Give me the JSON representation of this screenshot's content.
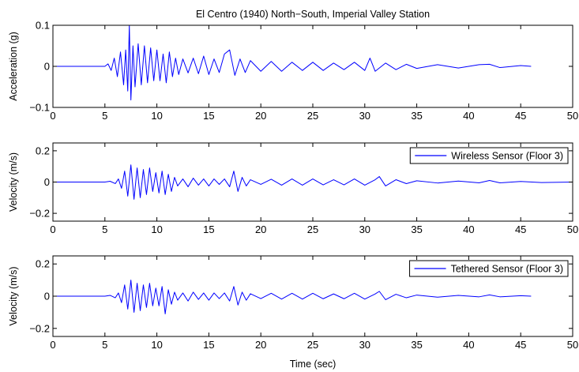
{
  "figure": {
    "title": "El Centro (1940) North−South, Imperial Valley Station",
    "xlabel": "Time (sec)"
  },
  "chart_data": [
    {
      "type": "line",
      "ylabel": "Acceleration (g)",
      "xlim": [
        0,
        50
      ],
      "ylim": [
        -0.1,
        0.1
      ],
      "xticks": [
        0,
        5,
        10,
        15,
        20,
        25,
        30,
        35,
        40,
        45,
        50
      ],
      "yticks": [
        -0.1,
        0,
        0.1
      ],
      "ytick_labels": [
        "−0.1",
        "0",
        "0.1"
      ],
      "legend": null,
      "series": [
        {
          "color": "#0000ff",
          "x": [
            0,
            5.0,
            5.3,
            5.6,
            5.9,
            6.2,
            6.5,
            6.8,
            7.0,
            7.2,
            7.35,
            7.5,
            7.7,
            7.9,
            8.2,
            8.5,
            8.8,
            9.1,
            9.4,
            9.7,
            10.0,
            10.3,
            10.6,
            10.9,
            11.2,
            11.5,
            11.8,
            12.1,
            12.5,
            13.0,
            13.5,
            14.0,
            14.5,
            15.0,
            15.5,
            16.0,
            16.5,
            17.0,
            17.5,
            18.0,
            18.5,
            19.0,
            20.0,
            21.0,
            22.0,
            23.0,
            24.0,
            25.0,
            26.0,
            27.0,
            28.0,
            29.0,
            30.0,
            30.5,
            31.0,
            32.0,
            33.0,
            34.0,
            35.0,
            37.0,
            39.0,
            41.0,
            42.0,
            43.0,
            45.0,
            46.0
          ],
          "y": [
            0,
            0,
            0.006,
            -0.01,
            0.02,
            -0.025,
            0.035,
            -0.045,
            0.04,
            -0.06,
            0.1,
            -0.082,
            0.05,
            -0.05,
            0.055,
            -0.045,
            0.05,
            -0.04,
            0.045,
            -0.035,
            0.04,
            -0.035,
            0.03,
            -0.04,
            0.035,
            -0.025,
            0.02,
            -0.02,
            0.018,
            -0.016,
            0.02,
            -0.018,
            0.025,
            -0.02,
            0.018,
            -0.015,
            0.03,
            0.04,
            -0.022,
            0.018,
            -0.015,
            0.014,
            -0.012,
            0.012,
            -0.012,
            0.01,
            -0.01,
            0.01,
            -0.01,
            0.008,
            -0.008,
            0.01,
            -0.01,
            0.02,
            -0.012,
            0.008,
            -0.008,
            0.005,
            -0.005,
            0.004,
            -0.004,
            0.004,
            0.005,
            -0.003,
            0.002,
            0
          ]
        }
      ]
    },
    {
      "type": "line",
      "ylabel": "Velocity (m/s)",
      "xlim": [
        0,
        50
      ],
      "ylim": [
        -0.25,
        0.25
      ],
      "xticks": [
        0,
        5,
        10,
        15,
        20,
        25,
        30,
        35,
        40,
        45,
        50
      ],
      "yticks": [
        -0.2,
        0,
        0.2
      ],
      "ytick_labels": [
        "−0.2",
        "0",
        "0.2"
      ],
      "legend": {
        "location": "top-right",
        "entries": [
          "Wireless Sensor (Floor 3)"
        ]
      },
      "series": [
        {
          "name": "Wireless Sensor (Floor 3)",
          "color": "#0000ff",
          "x": [
            0,
            5.0,
            5.5,
            6.0,
            6.3,
            6.6,
            6.9,
            7.2,
            7.5,
            7.8,
            8.1,
            8.4,
            8.7,
            9.0,
            9.3,
            9.6,
            9.9,
            10.2,
            10.5,
            10.8,
            11.1,
            11.4,
            11.7,
            12.0,
            12.5,
            13.0,
            13.5,
            14.0,
            14.5,
            15.0,
            15.5,
            16.0,
            16.5,
            17.0,
            17.4,
            17.8,
            18.2,
            18.6,
            19.0,
            20.0,
            21.0,
            22.0,
            23.0,
            24.0,
            25.0,
            26.0,
            27.0,
            28.0,
            29.0,
            30.0,
            31.0,
            31.4,
            32.0,
            33.0,
            34.0,
            35.0,
            37.0,
            39.0,
            41.0,
            42.0,
            43.0,
            45.0,
            47.0,
            50.0
          ],
          "y": [
            0,
            0,
            0.005,
            -0.01,
            0.02,
            -0.04,
            0.07,
            -0.09,
            0.11,
            -0.11,
            0.09,
            -0.1,
            0.08,
            -0.08,
            0.09,
            -0.06,
            0.06,
            -0.07,
            0.07,
            -0.08,
            0.05,
            -0.06,
            0.03,
            -0.025,
            0.02,
            -0.03,
            0.025,
            -0.02,
            0.02,
            -0.025,
            0.02,
            -0.015,
            0.02,
            -0.03,
            0.07,
            -0.06,
            0.03,
            -0.025,
            0.015,
            -0.015,
            0.018,
            -0.02,
            0.02,
            -0.02,
            0.02,
            -0.018,
            0.015,
            -0.018,
            0.02,
            -0.02,
            0.015,
            0.035,
            -0.025,
            0.015,
            -0.01,
            0.008,
            -0.006,
            0.006,
            -0.005,
            0.01,
            -0.005,
            0.004,
            -0.003,
            0
          ]
        }
      ]
    },
    {
      "type": "line",
      "ylabel": "Velocity (m/s)",
      "xlim": [
        0,
        50
      ],
      "ylim": [
        -0.25,
        0.25
      ],
      "xticks": [
        0,
        5,
        10,
        15,
        20,
        25,
        30,
        35,
        40,
        45,
        50
      ],
      "yticks": [
        -0.2,
        0,
        0.2
      ],
      "ytick_labels": [
        "−0.2",
        "0",
        "0.2"
      ],
      "legend": {
        "location": "top-right",
        "entries": [
          "Tethered Sensor (Floor 3)"
        ]
      },
      "series": [
        {
          "name": "Tethered Sensor (Floor 3)",
          "color": "#0000ff",
          "x": [
            0,
            5.0,
            5.5,
            6.0,
            6.3,
            6.6,
            6.9,
            7.2,
            7.5,
            7.8,
            8.1,
            8.4,
            8.7,
            9.0,
            9.3,
            9.6,
            9.9,
            10.2,
            10.5,
            10.8,
            11.1,
            11.4,
            11.7,
            12.0,
            12.5,
            13.0,
            13.5,
            14.0,
            14.5,
            15.0,
            15.5,
            16.0,
            16.5,
            17.0,
            17.4,
            17.8,
            18.2,
            18.6,
            19.0,
            20.0,
            21.0,
            22.0,
            23.0,
            24.0,
            25.0,
            26.0,
            27.0,
            28.0,
            29.0,
            30.0,
            31.0,
            31.4,
            32.0,
            33.0,
            34.0,
            35.0,
            37.0,
            39.0,
            41.0,
            42.0,
            43.0,
            45.0,
            46.0
          ],
          "y": [
            0,
            0,
            0.005,
            -0.01,
            0.02,
            -0.04,
            0.07,
            -0.08,
            0.1,
            -0.1,
            0.08,
            -0.09,
            0.07,
            -0.07,
            0.08,
            -0.06,
            0.05,
            -0.06,
            0.06,
            -0.11,
            0.04,
            -0.05,
            0.025,
            -0.025,
            0.02,
            -0.03,
            0.025,
            -0.02,
            0.02,
            -0.025,
            0.02,
            -0.015,
            0.02,
            -0.03,
            0.06,
            -0.055,
            0.025,
            -0.025,
            0.015,
            -0.015,
            0.018,
            -0.018,
            0.018,
            -0.018,
            0.018,
            -0.016,
            0.014,
            -0.016,
            0.018,
            -0.018,
            0.014,
            0.03,
            -0.022,
            0.012,
            -0.01,
            0.007,
            -0.006,
            0.005,
            -0.004,
            0.008,
            -0.004,
            0.003,
            0
          ]
        }
      ]
    }
  ]
}
